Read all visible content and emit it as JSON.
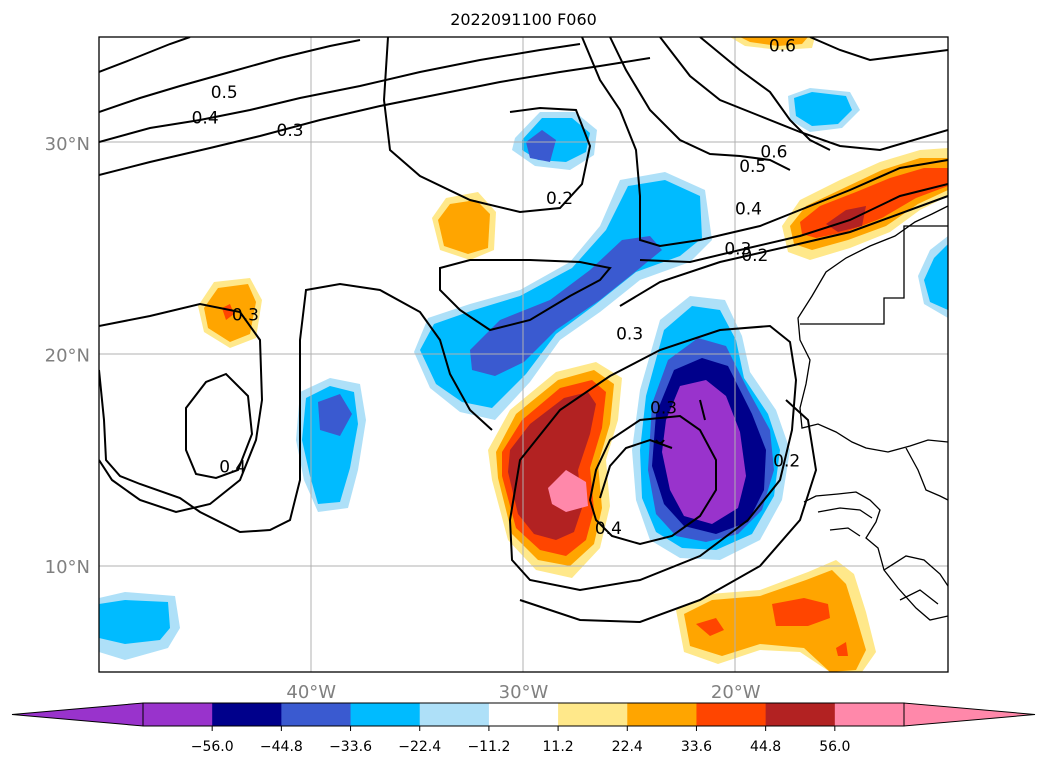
{
  "title": "2022091100 F060",
  "map": {
    "lon_range": [
      -50,
      -10
    ],
    "lat_range": [
      5,
      35
    ],
    "lat_ticks": [
      {
        "value": 30,
        "label": "30°N"
      },
      {
        "value": 20,
        "label": "20°N"
      },
      {
        "value": 10,
        "label": "10°N"
      }
    ],
    "lon_ticks": [
      {
        "value": -40,
        "label": "40°W"
      },
      {
        "value": -30,
        "label": "30°W"
      },
      {
        "value": -20,
        "label": "20°W"
      }
    ],
    "grid": true,
    "contour_color": "#000000",
    "contour_labels": [
      {
        "text": "0.5",
        "lon": -44.1,
        "lat": 32.4
      },
      {
        "text": "0.4",
        "lon": -45.0,
        "lat": 31.2
      },
      {
        "text": "0.3",
        "lon": -41.0,
        "lat": 30.6
      },
      {
        "text": "0.6",
        "lon": -17.8,
        "lat": 34.6
      },
      {
        "text": "0.6",
        "lon": -18.2,
        "lat": 29.6
      },
      {
        "text": "0.5",
        "lon": -19.2,
        "lat": 28.9
      },
      {
        "text": "0.2",
        "lon": -28.3,
        "lat": 27.4
      },
      {
        "text": "0.4",
        "lon": -19.4,
        "lat": 26.9
      },
      {
        "text": "0.3",
        "lon": -19.9,
        "lat": 25.0
      },
      {
        "text": "0.2",
        "lon": -19.1,
        "lat": 24.7
      },
      {
        "text": "0.3",
        "lon": -43.1,
        "lat": 21.9
      },
      {
        "text": "0.3",
        "lon": -25.0,
        "lat": 21.0
      },
      {
        "text": "0.3",
        "lon": -23.4,
        "lat": 17.5
      },
      {
        "text": "0.4",
        "lon": -26.0,
        "lat": 11.8
      },
      {
        "text": "0.2",
        "lon": -17.6,
        "lat": 15.0
      },
      {
        "text": "0.4",
        "lon": -43.7,
        "lat": 14.7
      }
    ]
  },
  "colorbar": {
    "levels": [
      "−56.0",
      "−44.8",
      "−33.6",
      "−22.4",
      "−11.2",
      "11.2",
      "22.4",
      "33.6",
      "44.8",
      "56.0"
    ],
    "colors": [
      "#9933cc",
      "#00008b",
      "#3a5ad0",
      "#00bbff",
      "#aee0f8",
      "#ffffff",
      "#ffe88a",
      "#ffa500",
      "#ff4500",
      "#b22222",
      "#ff88aa",
      "#ff88aa"
    ],
    "extend_low_color": "#9933cc",
    "extend_high_color": "#ff88aa"
  }
}
